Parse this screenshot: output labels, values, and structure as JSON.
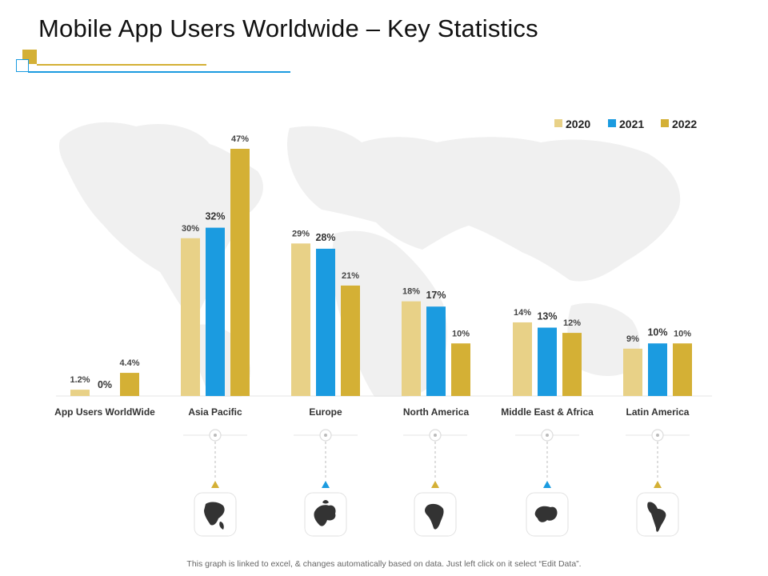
{
  "page": {
    "title": "Mobile App Users Worldwide – Key Statistics",
    "footer": "This graph is linked to excel, & changes automatically based on data. Just left click on it select “Edit Data”."
  },
  "colors": {
    "2020": "#e8d187",
    "2021": "#1b9be0",
    "2022": "#d4b035",
    "background_map": "#f1f1f1"
  },
  "icons": [
    "north-america-map-icon",
    "europe-map-icon",
    "africa-map-icon",
    "middle-east-map-icon",
    "latin-america-map-icon"
  ],
  "chart_data": {
    "type": "bar",
    "title": "",
    "xlabel": "",
    "ylabel": "",
    "ylim": [
      0,
      50
    ],
    "grid": false,
    "legend_position": "top-right",
    "categories": [
      "App Users WorldWide",
      "Asia Pacific",
      "Europe",
      "North America",
      "Middle East & Africa",
      "Latin America"
    ],
    "series": [
      {
        "name": "2020",
        "values": [
          1.2,
          30,
          29,
          18,
          14,
          9
        ],
        "labels": [
          "1.2%",
          "30%",
          "29%",
          "18%",
          "14%",
          "9%"
        ]
      },
      {
        "name": "2021",
        "values": [
          0,
          32,
          28,
          17,
          13,
          10
        ],
        "labels": [
          "0%",
          "32%",
          "28%",
          "17%",
          "13%",
          "10%"
        ]
      },
      {
        "name": "2022",
        "values": [
          4.4,
          47,
          21,
          10,
          12,
          10
        ],
        "labels": [
          "4.4%",
          "47%",
          "21%",
          "10%",
          "12%",
          "10%"
        ]
      }
    ]
  }
}
